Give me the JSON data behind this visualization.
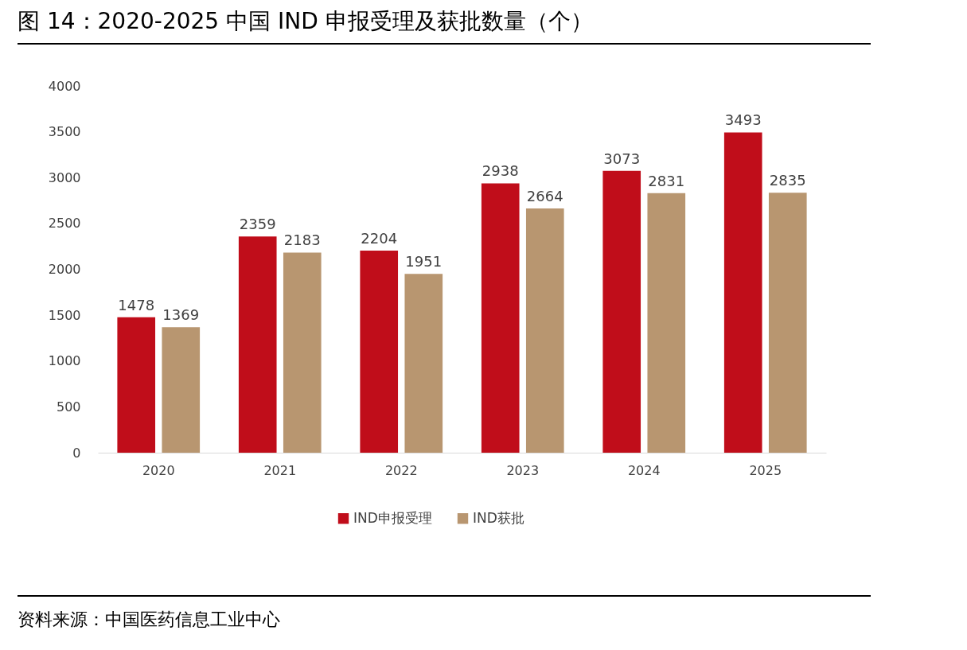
{
  "chart_data": {
    "type": "bar",
    "title": "图 14：2020-2025 中国 IND 申报受理及获批数量（个）",
    "categories": [
      "2020",
      "2021",
      "2022",
      "2023",
      "2024",
      "2025"
    ],
    "series": [
      {
        "name": "IND申报受理",
        "color": "#c00d1a",
        "values": [
          1478,
          2359,
          2204,
          2938,
          3073,
          3493
        ]
      },
      {
        "name": "IND获批",
        "color": "#b89670",
        "values": [
          1369,
          2183,
          1951,
          2664,
          2831,
          2835
        ]
      }
    ],
    "ylim": [
      0,
      4000
    ],
    "yticks": [
      0,
      500,
      1000,
      1500,
      2000,
      2500,
      3000,
      3500,
      4000
    ],
    "grid": false,
    "legend": "bottom",
    "data_labels": true,
    "annotations": [
      "资料来源：中国医药信息工业中心"
    ]
  }
}
